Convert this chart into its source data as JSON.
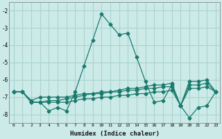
{
  "xlabel": "Humidex (Indice chaleur)",
  "ylabel": "",
  "bg_color": "#cceae7",
  "grid_color": "#aad4d0",
  "line_color": "#1a7a6e",
  "xlim": [
    -0.5,
    23.5
  ],
  "ylim": [
    -8.5,
    -1.5
  ],
  "yticks": [
    -8,
    -7,
    -6,
    -5,
    -4,
    -3,
    -2
  ],
  "xticks": [
    0,
    1,
    2,
    3,
    4,
    5,
    6,
    7,
    8,
    9,
    10,
    11,
    12,
    13,
    14,
    15,
    16,
    17,
    18,
    19,
    20,
    21,
    22,
    23
  ],
  "curves": [
    {
      "x": [
        0,
        1,
        2,
        3,
        4,
        5,
        6,
        7,
        8,
        9,
        10,
        11,
        12,
        13,
        14,
        15,
        16,
        17,
        18,
        19,
        20,
        21,
        22,
        23
      ],
      "y": [
        -6.7,
        -6.7,
        -7.3,
        -7.3,
        -7.8,
        -7.6,
        -7.8,
        -6.7,
        -5.2,
        -3.7,
        -2.2,
        -2.8,
        -3.4,
        -3.3,
        -4.7,
        -6.1,
        -7.3,
        -7.2,
        -6.3,
        -7.5,
        -8.2,
        -7.6,
        -7.5,
        -6.7
      ]
    },
    {
      "x": [
        0,
        1,
        2,
        3,
        4,
        5,
        6,
        7,
        8,
        9,
        10,
        11,
        12,
        13,
        14,
        15,
        16,
        17,
        18,
        19,
        20,
        21,
        22,
        23
      ],
      "y": [
        -6.7,
        -6.7,
        -7.2,
        -7.0,
        -7.0,
        -7.0,
        -7.0,
        -6.9,
        -6.8,
        -6.8,
        -6.7,
        -6.7,
        -6.7,
        -6.6,
        -6.6,
        -6.5,
        -6.5,
        -6.4,
        -6.4,
        -7.5,
        -6.3,
        -6.3,
        -6.2,
        -6.7
      ]
    },
    {
      "x": [
        0,
        1,
        2,
        3,
        4,
        5,
        6,
        7,
        8,
        9,
        10,
        11,
        12,
        13,
        14,
        15,
        16,
        17,
        18,
        19,
        20,
        21,
        22,
        23
      ],
      "y": [
        -6.7,
        -6.7,
        -7.3,
        -7.3,
        -7.3,
        -7.3,
        -7.3,
        -7.2,
        -7.1,
        -7.1,
        -7.0,
        -7.0,
        -6.9,
        -6.9,
        -6.8,
        -6.8,
        -6.7,
        -6.7,
        -6.6,
        -7.5,
        -6.5,
        -6.5,
        -6.4,
        -6.7
      ]
    },
    {
      "x": [
        0,
        1,
        2,
        3,
        4,
        5,
        6,
        7,
        8,
        9,
        10,
        11,
        12,
        13,
        14,
        15,
        16,
        17,
        18,
        19,
        20,
        21,
        22,
        23
      ],
      "y": [
        -6.7,
        -6.7,
        -7.3,
        -7.3,
        -7.2,
        -7.2,
        -7.1,
        -7.0,
        -6.9,
        -6.8,
        -6.8,
        -6.7,
        -6.6,
        -6.5,
        -6.5,
        -6.4,
        -6.3,
        -6.3,
        -6.2,
        -7.5,
        -6.1,
        -6.1,
        -6.0,
        -6.7
      ]
    }
  ],
  "marker": "D",
  "markersize": 2.5
}
